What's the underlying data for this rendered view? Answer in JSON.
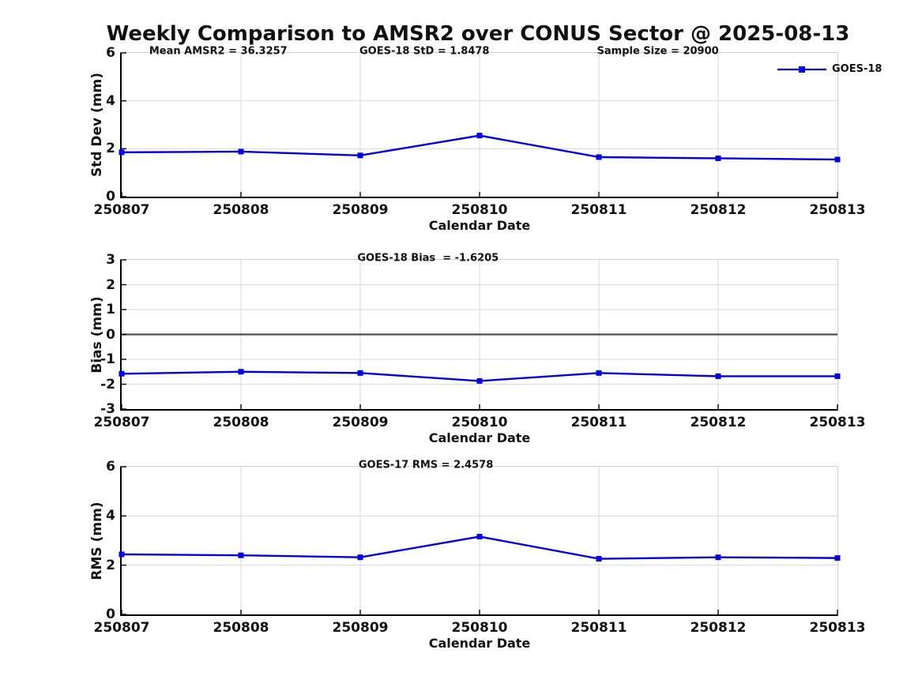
{
  "title": "Weekly Comparison to AMSR2 over CONUS Sector @ 2025-08-13",
  "colors": {
    "line": "#0000e0",
    "grid": "#d8d8d8",
    "zero_line": "#4d4d4d",
    "axis": "#000000",
    "box": "#cfcfcf"
  },
  "legend": {
    "position": "top-right",
    "entries": [
      "GOES-18"
    ],
    "marker": "square"
  },
  "chart_data": [
    {
      "type": "line",
      "ylabel": "Std Dev (mm)",
      "xlabel": "Calendar Date",
      "ylim": [
        0,
        6
      ],
      "yticks": [
        0,
        2,
        4,
        6
      ],
      "grid": true,
      "categories": [
        "250807",
        "250808",
        "250809",
        "250810",
        "250811",
        "250812",
        "250813"
      ],
      "series": [
        {
          "name": "GOES-18",
          "color": "#0000e0",
          "marker": "square",
          "values": [
            1.85,
            1.88,
            1.72,
            2.55,
            1.65,
            1.6,
            1.55
          ]
        }
      ],
      "annotations": [
        "Mean AMSR2 = 36.3257",
        "GOES-18 StD = 1.8478",
        "Sample Size = 20900"
      ],
      "legend": {
        "position": "top-right",
        "entries": [
          "GOES-18"
        ]
      }
    },
    {
      "type": "line",
      "ylabel": "Bias (mm)",
      "xlabel": "Calendar Date",
      "ylim": [
        -3,
        3
      ],
      "yticks": [
        -3,
        -2,
        -1,
        0,
        1,
        2,
        3
      ],
      "grid": true,
      "zero_line": true,
      "categories": [
        "250807",
        "250808",
        "250809",
        "250810",
        "250811",
        "250812",
        "250813"
      ],
      "series": [
        {
          "name": "GOES-18",
          "color": "#0000e0",
          "marker": "square",
          "values": [
            -1.58,
            -1.5,
            -1.55,
            -1.87,
            -1.55,
            -1.68,
            -1.68
          ]
        }
      ],
      "annotations": [
        "GOES-18 Bias  = -1.6205"
      ]
    },
    {
      "type": "line",
      "ylabel": "RMS (mm)",
      "xlabel": "Calendar Date",
      "ylim": [
        0,
        6
      ],
      "yticks": [
        0,
        2,
        4,
        6
      ],
      "grid": true,
      "categories": [
        "250807",
        "250808",
        "250809",
        "250810",
        "250811",
        "250812",
        "250813"
      ],
      "series": [
        {
          "name": "GOES-18",
          "color": "#0000e0",
          "marker": "square",
          "values": [
            2.44,
            2.4,
            2.32,
            3.16,
            2.26,
            2.32,
            2.29
          ]
        }
      ],
      "annotations": [
        "GOES-17 RMS = 2.4578"
      ]
    }
  ]
}
